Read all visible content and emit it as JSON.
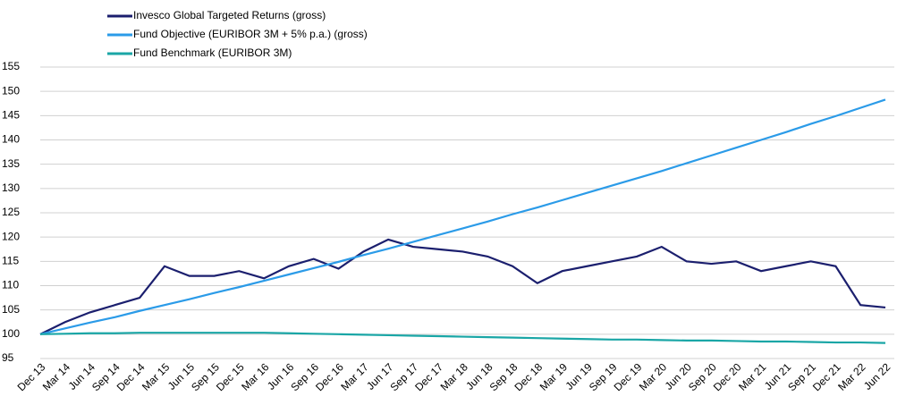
{
  "chart_data": {
    "type": "line",
    "categories": [
      "Dec 13",
      "Mar 14",
      "Jun 14",
      "Sep 14",
      "Dec 14",
      "Mar 15",
      "Jun 15",
      "Sep 15",
      "Dec 15",
      "Mar 16",
      "Jun 16",
      "Sep 16",
      "Dec 16",
      "Mar 17",
      "Jun 17",
      "Sep 17",
      "Dec 17",
      "Mar 18",
      "Jun 18",
      "Sep 18",
      "Dec 18",
      "Mar 19",
      "Jun 19",
      "Sep 19",
      "Dec 19",
      "Mar 20",
      "Jun 20",
      "Sep 20",
      "Dec 20",
      "Mar 21",
      "Jun 21",
      "Sep 21",
      "Dec 21",
      "Mar 22",
      "Jun 22"
    ],
    "series": [
      {
        "name": "Invesco Global Targeted Returns (gross)",
        "color": "#1b1f6e",
        "values": [
          100,
          102.5,
          104.5,
          106,
          107.5,
          114,
          112,
          112,
          113,
          111.5,
          114,
          115.5,
          113.5,
          117,
          119.5,
          118,
          117.5,
          117,
          116,
          114,
          110.5,
          113,
          114,
          115,
          116,
          118,
          115,
          114.5,
          115,
          113,
          114,
          115,
          114,
          106,
          105.5
        ]
      },
      {
        "name": "Fund Objective (EURIBOR 3M + 5% p.a.) (gross)",
        "color": "#2b9be8",
        "values": [
          100,
          101.2,
          102.4,
          103.5,
          104.8,
          106,
          107.2,
          108.5,
          109.7,
          111,
          112.3,
          113.6,
          114.9,
          116.3,
          117.6,
          119,
          120.4,
          121.8,
          123.2,
          124.7,
          126.1,
          127.6,
          129.1,
          130.6,
          132.1,
          133.6,
          135.2,
          136.8,
          138.4,
          140,
          141.6,
          143.3,
          144.9,
          146.6,
          148.3
        ]
      },
      {
        "name": "Fund Benchmark (EURIBOR 3M)",
        "color": "#1aa6a6",
        "values": [
          100,
          100.1,
          100.2,
          100.2,
          100.3,
          100.3,
          100.3,
          100.3,
          100.3,
          100.3,
          100.2,
          100.1,
          100,
          99.9,
          99.8,
          99.7,
          99.6,
          99.5,
          99.4,
          99.3,
          99.2,
          99.1,
          99,
          98.9,
          98.9,
          98.8,
          98.7,
          98.7,
          98.6,
          98.5,
          98.5,
          98.4,
          98.3,
          98.3,
          98.2
        ]
      }
    ],
    "ylim": [
      95,
      155
    ],
    "yticks": [
      95,
      100,
      105,
      110,
      115,
      120,
      125,
      130,
      135,
      140,
      145,
      150,
      155
    ],
    "grid": true
  }
}
